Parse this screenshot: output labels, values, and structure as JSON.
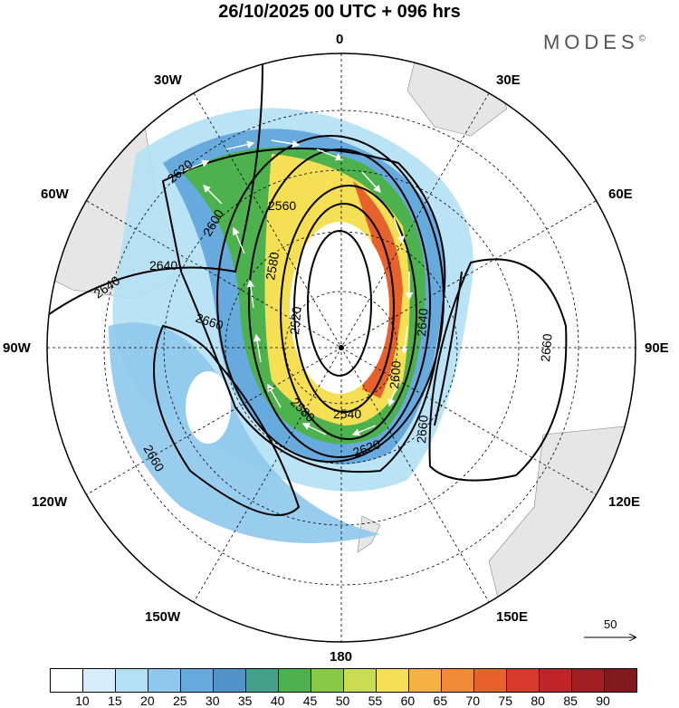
{
  "title": "26/10/2025  00 UTC  + 096 hrs",
  "brand": "MODES",
  "brand_mark": "©",
  "map": {
    "projection": "polar stereographic (south pole)",
    "longitude_labels": [
      "0",
      "30E",
      "60E",
      "90E",
      "120E",
      "150E",
      "180",
      "150W",
      "120W",
      "90W",
      "60W",
      "30W"
    ],
    "contour_labels": [
      "2620",
      "2560",
      "2600",
      "2580",
      "2520",
      "2540",
      "2580",
      "2600",
      "2640",
      "2640",
      "2640",
      "2660",
      "2660",
      "2660",
      "2620",
      "2660"
    ],
    "land_color": "#e6e6e6",
    "contour_color": "#000000",
    "vector_color": "#ffffff"
  },
  "reference_vector": {
    "label": "50"
  },
  "colorbar": {
    "ticks": [
      "10",
      "15",
      "20",
      "25",
      "30",
      "35",
      "40",
      "45",
      "50",
      "55",
      "60",
      "65",
      "70",
      "75",
      "80",
      "85",
      "90"
    ],
    "colors": [
      "#ffffff",
      "#d6eefa",
      "#b3e0f5",
      "#8ec8ec",
      "#66aade",
      "#4f93cb",
      "#44a08c",
      "#4db14e",
      "#88c946",
      "#c8dd4f",
      "#f5df55",
      "#f4b245",
      "#f08a36",
      "#e6612c",
      "#d73a2a",
      "#bf2428",
      "#a01e22",
      "#7f1a1e"
    ]
  }
}
